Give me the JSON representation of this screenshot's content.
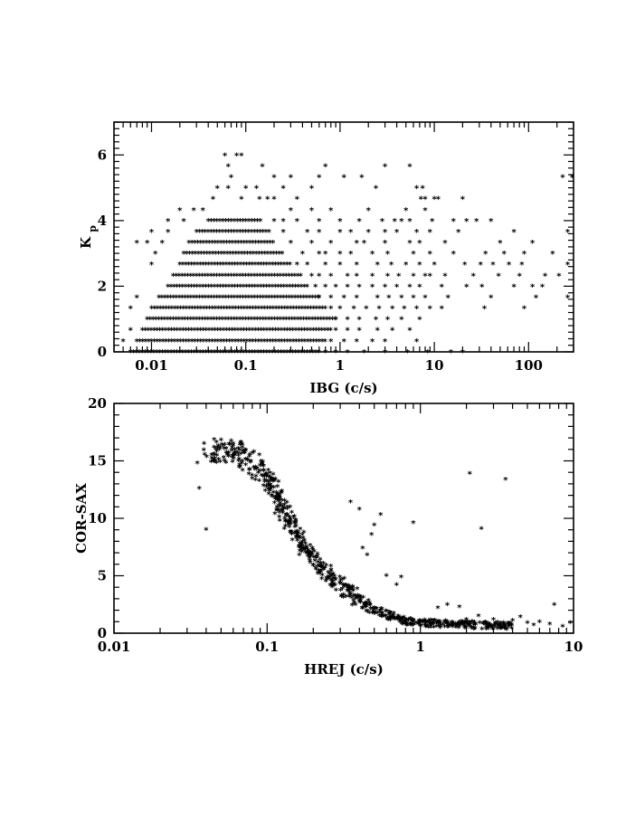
{
  "chart_data": [
    {
      "type": "scatter",
      "title": "",
      "xlabel": "IBG (c/s)",
      "ylabel": "Kp",
      "ylabel_main": "K",
      "ylabel_sub": "p",
      "xscale": "log",
      "xlim": [
        0.004,
        300
      ],
      "ylim": [
        0,
        7
      ],
      "xticks": [
        0.01,
        0.1,
        1,
        10,
        100
      ],
      "xtick_labels": [
        "0.01",
        "0.1",
        "1",
        "10",
        "100"
      ],
      "yticks": [
        0,
        2,
        4,
        6
      ],
      "ytick_labels": [
        "0",
        "2",
        "4",
        "6"
      ],
      "marker": "asterisk",
      "grid": false,
      "y_levels": [
        0,
        0.33,
        0.67,
        1,
        1.33,
        1.67,
        2,
        2.33,
        2.67,
        3,
        3.33,
        3.67,
        4,
        4.33,
        4.67,
        5,
        5.33,
        5.67,
        6
      ],
      "dense_bands": [
        {
          "y": 0,
          "x_range": [
            0.006,
            0.6
          ]
        },
        {
          "y": 0.33,
          "x_range": [
            0.007,
            0.7
          ]
        },
        {
          "y": 0.67,
          "x_range": [
            0.008,
            0.8
          ]
        },
        {
          "y": 1,
          "x_range": [
            0.009,
            0.9
          ]
        },
        {
          "y": 1.33,
          "x_range": [
            0.01,
            0.7
          ]
        },
        {
          "y": 1.67,
          "x_range": [
            0.012,
            0.6
          ]
        },
        {
          "y": 2,
          "x_range": [
            0.015,
            0.45
          ]
        },
        {
          "y": 2.33,
          "x_range": [
            0.017,
            0.4
          ]
        },
        {
          "y": 2.67,
          "x_range": [
            0.02,
            0.3
          ]
        },
        {
          "y": 3,
          "x_range": [
            0.022,
            0.25
          ]
        },
        {
          "y": 3.33,
          "x_range": [
            0.025,
            0.2
          ]
        },
        {
          "y": 3.67,
          "x_range": [
            0.03,
            0.18
          ]
        },
        {
          "y": 4,
          "x_range": [
            0.04,
            0.15
          ]
        }
      ],
      "points": [
        [
          0.06,
          6
        ],
        [
          0.08,
          6
        ],
        [
          0.09,
          6
        ],
        [
          0.065,
          5.67
        ],
        [
          0.15,
          5.67
        ],
        [
          0.7,
          5.67
        ],
        [
          3,
          5.67
        ],
        [
          5.5,
          5.67
        ],
        [
          0.07,
          5.33
        ],
        [
          0.2,
          5.33
        ],
        [
          0.3,
          5.33
        ],
        [
          0.6,
          5.33
        ],
        [
          1.1,
          5.33
        ],
        [
          1.7,
          5.33
        ],
        [
          230,
          5.33
        ],
        [
          290,
          5.33
        ],
        [
          0.05,
          5
        ],
        [
          0.065,
          5
        ],
        [
          0.1,
          5
        ],
        [
          0.13,
          5
        ],
        [
          0.25,
          5
        ],
        [
          0.5,
          5
        ],
        [
          2.4,
          5
        ],
        [
          6.5,
          5
        ],
        [
          7.5,
          5
        ],
        [
          0.045,
          4.67
        ],
        [
          0.09,
          4.67
        ],
        [
          0.14,
          4.67
        ],
        [
          0.17,
          4.67
        ],
        [
          0.2,
          4.67
        ],
        [
          0.35,
          4.67
        ],
        [
          7.2,
          4.67
        ],
        [
          8,
          4.67
        ],
        [
          10,
          4.67
        ],
        [
          11,
          4.67
        ],
        [
          20,
          4.67
        ],
        [
          0.02,
          4.33
        ],
        [
          0.028,
          4.33
        ],
        [
          0.035,
          4.33
        ],
        [
          0.3,
          4.33
        ],
        [
          0.5,
          4.33
        ],
        [
          0.8,
          4.33
        ],
        [
          2,
          4.33
        ],
        [
          5,
          4.33
        ],
        [
          8,
          4.33
        ],
        [
          0.015,
          4
        ],
        [
          0.022,
          4
        ],
        [
          0.2,
          4
        ],
        [
          0.25,
          4
        ],
        [
          0.35,
          4
        ],
        [
          0.6,
          4
        ],
        [
          1,
          4
        ],
        [
          1.6,
          4
        ],
        [
          2.8,
          4
        ],
        [
          3.8,
          4
        ],
        [
          4.5,
          4
        ],
        [
          5.5,
          4
        ],
        [
          9.5,
          4
        ],
        [
          16,
          4
        ],
        [
          22,
          4
        ],
        [
          28,
          4
        ],
        [
          40,
          4
        ],
        [
          0.01,
          3.67
        ],
        [
          0.015,
          3.67
        ],
        [
          0.25,
          3.67
        ],
        [
          0.45,
          3.67
        ],
        [
          0.6,
          3.67
        ],
        [
          1,
          3.67
        ],
        [
          1.3,
          3.67
        ],
        [
          2,
          3.67
        ],
        [
          3,
          3.67
        ],
        [
          4,
          3.67
        ],
        [
          6.5,
          3.67
        ],
        [
          9,
          3.67
        ],
        [
          18,
          3.67
        ],
        [
          70,
          3.67
        ],
        [
          260,
          3.67
        ],
        [
          0.007,
          3.33
        ],
        [
          0.009,
          3.33
        ],
        [
          0.013,
          3.33
        ],
        [
          0.3,
          3.33
        ],
        [
          0.5,
          3.33
        ],
        [
          0.8,
          3.33
        ],
        [
          1.5,
          3.33
        ],
        [
          1.8,
          3.33
        ],
        [
          3,
          3.33
        ],
        [
          5.5,
          3.33
        ],
        [
          7,
          3.33
        ],
        [
          13,
          3.33
        ],
        [
          50,
          3.33
        ],
        [
          110,
          3.33
        ],
        [
          0.011,
          3
        ],
        [
          0.4,
          3
        ],
        [
          0.6,
          3
        ],
        [
          0.7,
          3
        ],
        [
          1,
          3
        ],
        [
          1.3,
          3
        ],
        [
          2.2,
          3
        ],
        [
          3.2,
          3
        ],
        [
          6,
          3
        ],
        [
          9,
          3
        ],
        [
          16,
          3
        ],
        [
          35,
          3
        ],
        [
          55,
          3
        ],
        [
          90,
          3
        ],
        [
          180,
          3
        ],
        [
          0.01,
          2.67
        ],
        [
          0.35,
          2.67
        ],
        [
          0.45,
          2.67
        ],
        [
          0.7,
          2.67
        ],
        [
          1,
          2.67
        ],
        [
          1.5,
          2.67
        ],
        [
          2.5,
          2.67
        ],
        [
          3.5,
          2.67
        ],
        [
          5,
          2.67
        ],
        [
          7,
          2.67
        ],
        [
          10,
          2.67
        ],
        [
          21,
          2.67
        ],
        [
          31,
          2.67
        ],
        [
          42,
          2.67
        ],
        [
          62,
          2.67
        ],
        [
          85,
          2.67
        ],
        [
          260,
          2.67
        ],
        [
          0.5,
          2.33
        ],
        [
          0.6,
          2.33
        ],
        [
          0.8,
          2.33
        ],
        [
          1.2,
          2.33
        ],
        [
          1.5,
          2.33
        ],
        [
          2.2,
          2.33
        ],
        [
          3.2,
          2.33
        ],
        [
          4.2,
          2.33
        ],
        [
          6,
          2.33
        ],
        [
          8,
          2.33
        ],
        [
          9,
          2.33
        ],
        [
          13,
          2.33
        ],
        [
          26,
          2.33
        ],
        [
          48,
          2.33
        ],
        [
          80,
          2.33
        ],
        [
          150,
          2.33
        ],
        [
          210,
          2.33
        ],
        [
          0.55,
          2
        ],
        [
          0.7,
          2
        ],
        [
          0.9,
          2
        ],
        [
          1.2,
          2
        ],
        [
          1.6,
          2
        ],
        [
          2.2,
          2
        ],
        [
          3,
          2
        ],
        [
          4,
          2
        ],
        [
          5.5,
          2
        ],
        [
          7,
          2
        ],
        [
          12,
          2
        ],
        [
          22,
          2
        ],
        [
          32,
          2
        ],
        [
          70,
          2
        ],
        [
          110,
          2
        ],
        [
          140,
          2
        ],
        [
          0.007,
          1.67
        ],
        [
          0.6,
          1.67
        ],
        [
          0.8,
          1.67
        ],
        [
          1.1,
          1.67
        ],
        [
          1.5,
          1.67
        ],
        [
          2.5,
          1.67
        ],
        [
          3.3,
          1.67
        ],
        [
          4.5,
          1.67
        ],
        [
          6,
          1.67
        ],
        [
          8,
          1.67
        ],
        [
          14,
          1.67
        ],
        [
          40,
          1.67
        ],
        [
          120,
          1.67
        ],
        [
          260,
          1.67
        ],
        [
          0.006,
          1.33
        ],
        [
          0.8,
          1.33
        ],
        [
          1,
          1.33
        ],
        [
          1.4,
          1.33
        ],
        [
          1.9,
          1.33
        ],
        [
          2.6,
          1.33
        ],
        [
          3.6,
          1.33
        ],
        [
          4.8,
          1.33
        ],
        [
          6.5,
          1.33
        ],
        [
          9,
          1.33
        ],
        [
          12,
          1.33
        ],
        [
          34,
          1.33
        ],
        [
          90,
          1.33
        ],
        [
          0.9,
          1
        ],
        [
          1.2,
          1
        ],
        [
          1.6,
          1
        ],
        [
          2.4,
          1
        ],
        [
          3.2,
          1
        ],
        [
          4.5,
          1
        ],
        [
          7,
          1
        ],
        [
          0.006,
          0.67
        ],
        [
          0.9,
          0.67
        ],
        [
          1.2,
          0.67
        ],
        [
          1.6,
          0.67
        ],
        [
          2.5,
          0.67
        ],
        [
          3.6,
          0.67
        ],
        [
          5.5,
          0.67
        ],
        [
          0.005,
          0.33
        ],
        [
          0.8,
          0.33
        ],
        [
          1.1,
          0.33
        ],
        [
          1.5,
          0.33
        ],
        [
          2.2,
          0.33
        ],
        [
          3,
          0.33
        ],
        [
          6.5,
          0.33
        ],
        [
          0.7,
          0
        ],
        [
          0.9,
          0
        ],
        [
          1.2,
          0
        ],
        [
          1.8,
          0
        ],
        [
          3,
          0
        ],
        [
          5.2,
          0
        ],
        [
          8.5,
          0
        ],
        [
          15,
          0
        ],
        [
          20,
          0
        ]
      ]
    },
    {
      "type": "scatter",
      "title": "",
      "xlabel": "HREJ (c/s)",
      "ylabel": "COR-SAX",
      "xscale": "log",
      "xlim": [
        0.01,
        10
      ],
      "ylim": [
        0,
        20
      ],
      "xticks": [
        0.01,
        0.1,
        1,
        10
      ],
      "xtick_labels": [
        "0.01",
        "0.1",
        "1",
        "10"
      ],
      "yticks": [
        0,
        5,
        10,
        15,
        20
      ],
      "ytick_labels": [
        "0",
        "5",
        "10",
        "15",
        "20"
      ],
      "marker": "asterisk",
      "grid": false,
      "trend_curve": [
        [
          0.04,
          16.0
        ],
        [
          0.07,
          15.5
        ],
        [
          0.1,
          13.5
        ],
        [
          0.13,
          10.5
        ],
        [
          0.18,
          7.2
        ],
        [
          0.26,
          4.8
        ],
        [
          0.38,
          3.0
        ],
        [
          0.55,
          1.7
        ],
        [
          0.8,
          1.0
        ],
        [
          1.2,
          0.8
        ],
        [
          2.0,
          0.7
        ],
        [
          4.0,
          0.6
        ]
      ],
      "points": [
        [
          0.035,
          14.8
        ],
        [
          0.036,
          12.6
        ],
        [
          0.04,
          9.0
        ],
        [
          0.045,
          16.2
        ],
        [
          0.05,
          16.8
        ],
        [
          0.055,
          15.6
        ],
        [
          0.06,
          16.5
        ],
        [
          0.065,
          15.0
        ],
        [
          2.1,
          13.9
        ],
        [
          3.6,
          13.4
        ],
        [
          2.5,
          9.1
        ],
        [
          0.9,
          9.6
        ],
        [
          0.55,
          10.3
        ],
        [
          0.5,
          9.4
        ],
        [
          0.48,
          8.6
        ],
        [
          0.35,
          11.4
        ],
        [
          0.4,
          10.8
        ],
        [
          0.42,
          7.4
        ],
        [
          0.45,
          6.8
        ],
        [
          0.6,
          5.0
        ],
        [
          0.7,
          4.2
        ],
        [
          0.75,
          4.9
        ],
        [
          1.3,
          2.2
        ],
        [
          1.5,
          2.5
        ],
        [
          1.8,
          2.3
        ],
        [
          2.0,
          1.2
        ],
        [
          2.2,
          1.0
        ],
        [
          2.4,
          1.5
        ],
        [
          3.0,
          1.2
        ],
        [
          3.5,
          0.9
        ],
        [
          4.0,
          1.1
        ],
        [
          4.5,
          1.4
        ],
        [
          5.0,
          0.9
        ],
        [
          5.5,
          0.7
        ],
        [
          6.0,
          1.0
        ],
        [
          7.0,
          0.8
        ],
        [
          7.5,
          2.5
        ],
        [
          8.5,
          0.6
        ],
        [
          9.5,
          0.9
        ]
      ]
    }
  ]
}
